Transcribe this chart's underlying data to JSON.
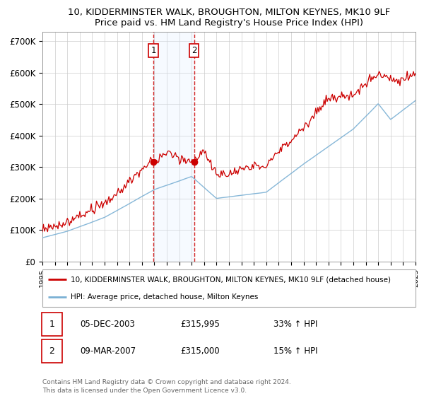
{
  "title1": "10, KIDDERMINSTER WALK, BROUGHTON, MILTON KEYNES, MK10 9LF",
  "title2": "Price paid vs. HM Land Registry's House Price Index (HPI)",
  "legend_line1": "10, KIDDERMINSTER WALK, BROUGHTON, MILTON KEYNES, MK10 9LF (detached house)",
  "legend_line2": "HPI: Average price, detached house, Milton Keynes",
  "sale1_date": "05-DEC-2003",
  "sale1_price": "£315,995",
  "sale1_hpi": "33% ↑ HPI",
  "sale1_year": 2003.92,
  "sale1_value": 315995,
  "sale2_date": "09-MAR-2007",
  "sale2_price": "£315,000",
  "sale2_hpi": "15% ↑ HPI",
  "sale2_year": 2007.19,
  "sale2_value": 315000,
  "hpi_color": "#7ab0d4",
  "price_color": "#cc0000",
  "shade_color": "#ddeeff",
  "grid_color": "#cccccc",
  "copyright": "Contains HM Land Registry data © Crown copyright and database right 2024.\nThis data is licensed under the Open Government Licence v3.0.",
  "ylim_min": 0,
  "ylim_max": 730000,
  "yticks": [
    0,
    100000,
    200000,
    300000,
    400000,
    500000,
    600000,
    700000
  ],
  "ytick_labels": [
    "£0",
    "£100K",
    "£200K",
    "£300K",
    "£400K",
    "£500K",
    "£600K",
    "£700K"
  ],
  "year_start": 1995,
  "year_end": 2025
}
